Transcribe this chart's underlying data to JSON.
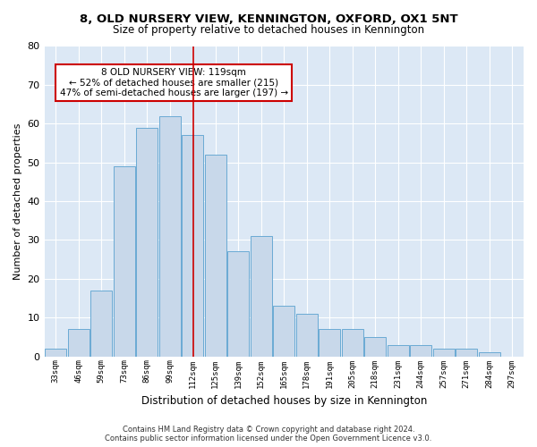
{
  "title_line1": "8, OLD NURSERY VIEW, KENNINGTON, OXFORD, OX1 5NT",
  "title_line2": "Size of property relative to detached houses in Kennington",
  "xlabel": "Distribution of detached houses by size in Kennington",
  "ylabel": "Number of detached properties",
  "categories": [
    "33sqm",
    "46sqm",
    "59sqm",
    "73sqm",
    "86sqm",
    "99sqm",
    "112sqm",
    "125sqm",
    "139sqm",
    "152sqm",
    "165sqm",
    "178sqm",
    "191sqm",
    "205sqm",
    "218sqm",
    "231sqm",
    "244sqm",
    "257sqm",
    "271sqm",
    "284sqm",
    "297sqm"
  ],
  "values": [
    2,
    7,
    17,
    49,
    59,
    62,
    57,
    52,
    27,
    31,
    13,
    11,
    7,
    7,
    5,
    3,
    3,
    2,
    2,
    1,
    0
  ],
  "bar_color": "#c8d8ea",
  "bar_edge_color": "#6aaad4",
  "annotation_text": "8 OLD NURSERY VIEW: 119sqm\n← 52% of detached houses are smaller (215)\n47% of semi-detached houses are larger (197) →",
  "annotation_box_color": "#ffffff",
  "annotation_box_edge_color": "#cc0000",
  "vline_color": "#cc0000",
  "ylim": [
    0,
    80
  ],
  "yticks": [
    0,
    10,
    20,
    30,
    40,
    50,
    60,
    70,
    80
  ],
  "fig_background_color": "#ffffff",
  "axes_background_color": "#dce8f5",
  "grid_color": "#ffffff",
  "footer_line1": "Contains HM Land Registry data © Crown copyright and database right 2024.",
  "footer_line2": "Contains public sector information licensed under the Open Government Licence v3.0."
}
